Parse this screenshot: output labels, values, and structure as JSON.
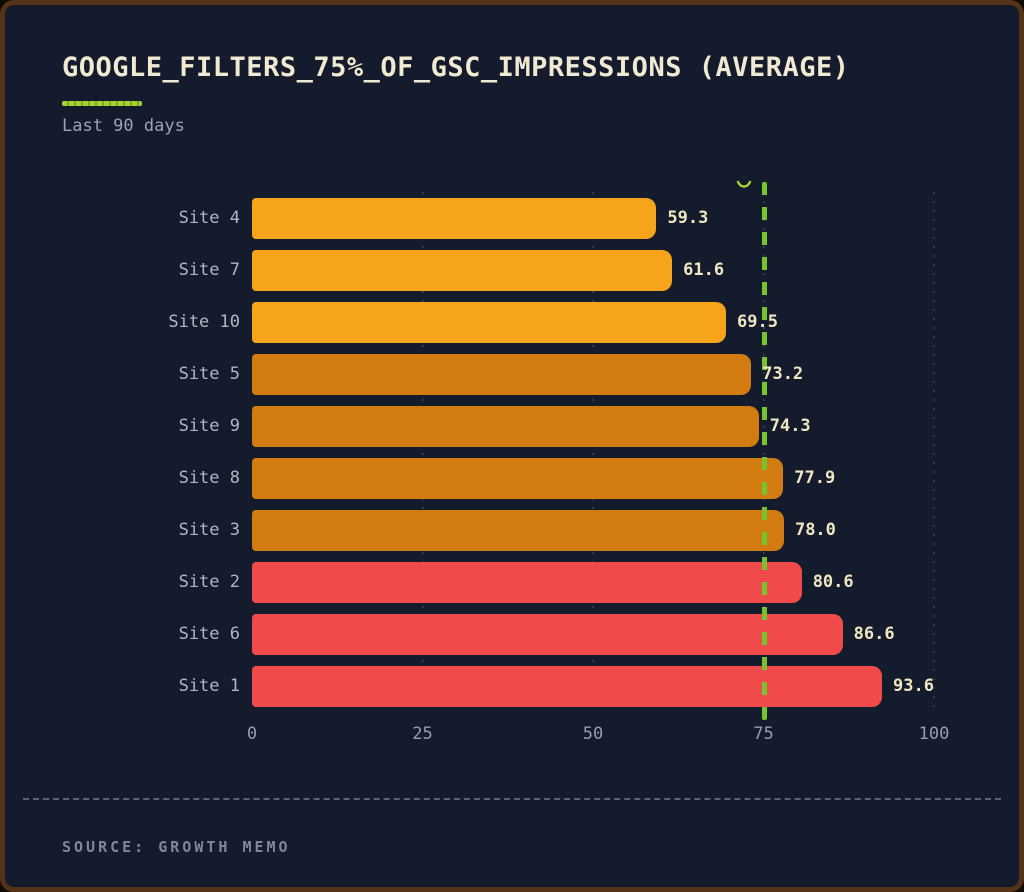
{
  "header": {
    "title": "GOOGLE_FILTERS_75%_OF_GSC_IMPRESSIONS (AVERAGE)",
    "subtitle": "Last 90 days"
  },
  "footer": {
    "source": "SOURCE: GROWTH MEMO"
  },
  "colors": {
    "background": "#141b2c",
    "border": "#553319",
    "title": "#f1ead3",
    "accent_green": "#a6d334",
    "reference_line": "#76c32d",
    "bright_orange": "#f6a51b",
    "dark_orange": "#d27b10",
    "red": "#f04a4a",
    "value_label": "#efe7c2",
    "category_label": "#afb6c4",
    "axis_label": "#959eaf"
  },
  "chart_data": {
    "type": "bar",
    "orientation": "horizontal",
    "title": "GOOGLE_FILTERS_75%_OF_GSC_IMPRESSIONS (AVERAGE)",
    "subtitle": "Last 90 days",
    "xlabel": "",
    "ylabel": "",
    "xlim": [
      0,
      100
    ],
    "x_ticks": [
      "0",
      "25",
      "50",
      "75",
      "100"
    ],
    "x_tick_values": [
      0,
      25,
      50,
      75,
      100
    ],
    "grid": "faint dotted vertical gridlines",
    "legend": "none",
    "reference_line": {
      "value": 75,
      "style": "dashed",
      "color": "#76c32d"
    },
    "categories": [
      "Site 4",
      "Site 7",
      "Site 10",
      "Site 5",
      "Site 9",
      "Site 8",
      "Site 3",
      "Site 2",
      "Site 6",
      "Site 1"
    ],
    "values": [
      59.3,
      61.6,
      69.5,
      73.2,
      74.3,
      77.9,
      78.0,
      80.6,
      86.6,
      93.6
    ],
    "value_labels": [
      "59.3",
      "61.6",
      "69.5",
      "73.2",
      "74.3",
      "77.9",
      "78.0",
      "80.6",
      "86.6",
      "93.6"
    ],
    "bar_colors": [
      "#f6a51b",
      "#f6a51b",
      "#f6a51b",
      "#d27b10",
      "#d27b10",
      "#d27b10",
      "#d27b10",
      "#f04a4a",
      "#f04a4a",
      "#f04a4a"
    ]
  }
}
